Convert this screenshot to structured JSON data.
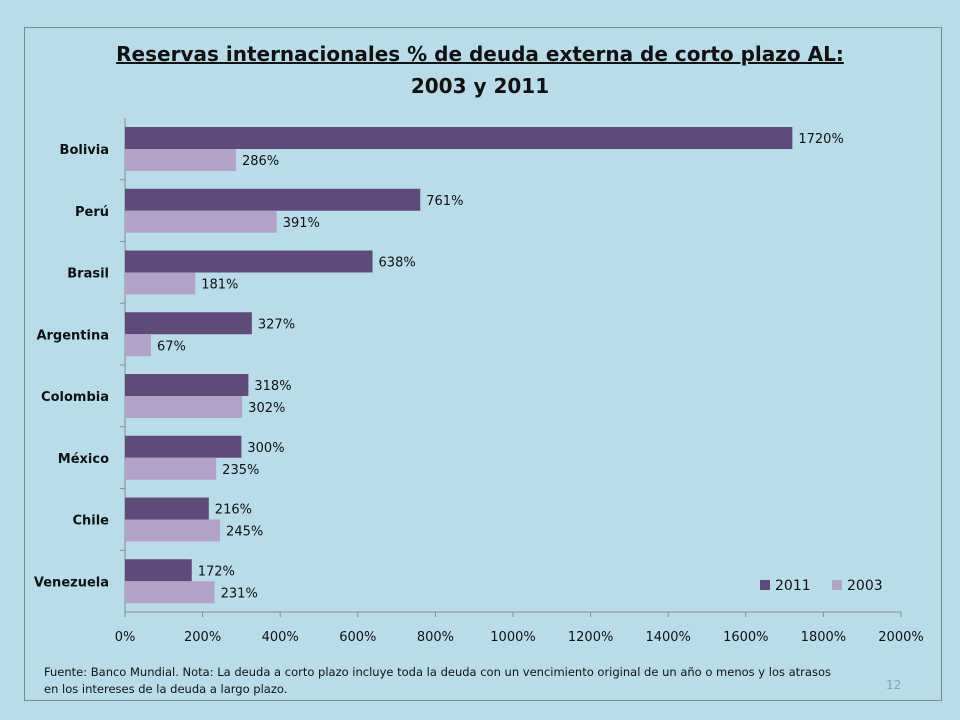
{
  "slide": {
    "title_line1": "Reservas internacionales % de deuda externa de corto plazo AL:",
    "title_line2": "2003 y 2011",
    "footnote": "Fuente: Banco Mundial. Nota: La deuda a corto plazo incluye toda la deuda con un vencimiento original de un año o menos y los atrasos en los intereses de la deuda a largo plazo.",
    "page_number": "12"
  },
  "chart_data": {
    "type": "bar",
    "orientation": "horizontal",
    "categories": [
      "Bolivia",
      "Perú",
      "Brasil",
      "Argentina",
      "Colombia",
      "México",
      "Chile",
      "Venezuela"
    ],
    "series": [
      {
        "name": "2011",
        "color": "#604a7b",
        "values": [
          1720,
          761,
          638,
          327,
          318,
          300,
          216,
          172
        ]
      },
      {
        "name": "2003",
        "color": "#b3a2c7",
        "values": [
          286,
          391,
          181,
          67,
          302,
          235,
          245,
          231
        ]
      }
    ],
    "xlim": [
      0,
      2000
    ],
    "xticks": [
      0,
      200,
      400,
      600,
      800,
      1000,
      1200,
      1400,
      1600,
      1800,
      2000
    ],
    "tick_labels": [
      "0%",
      "200%",
      "400%",
      "600%",
      "800%",
      "1000%",
      "1200%",
      "1400%",
      "1600%",
      "1800%",
      "2000%"
    ],
    "value_suffix": "%",
    "grid": false,
    "legend_position": "bottom-right"
  }
}
